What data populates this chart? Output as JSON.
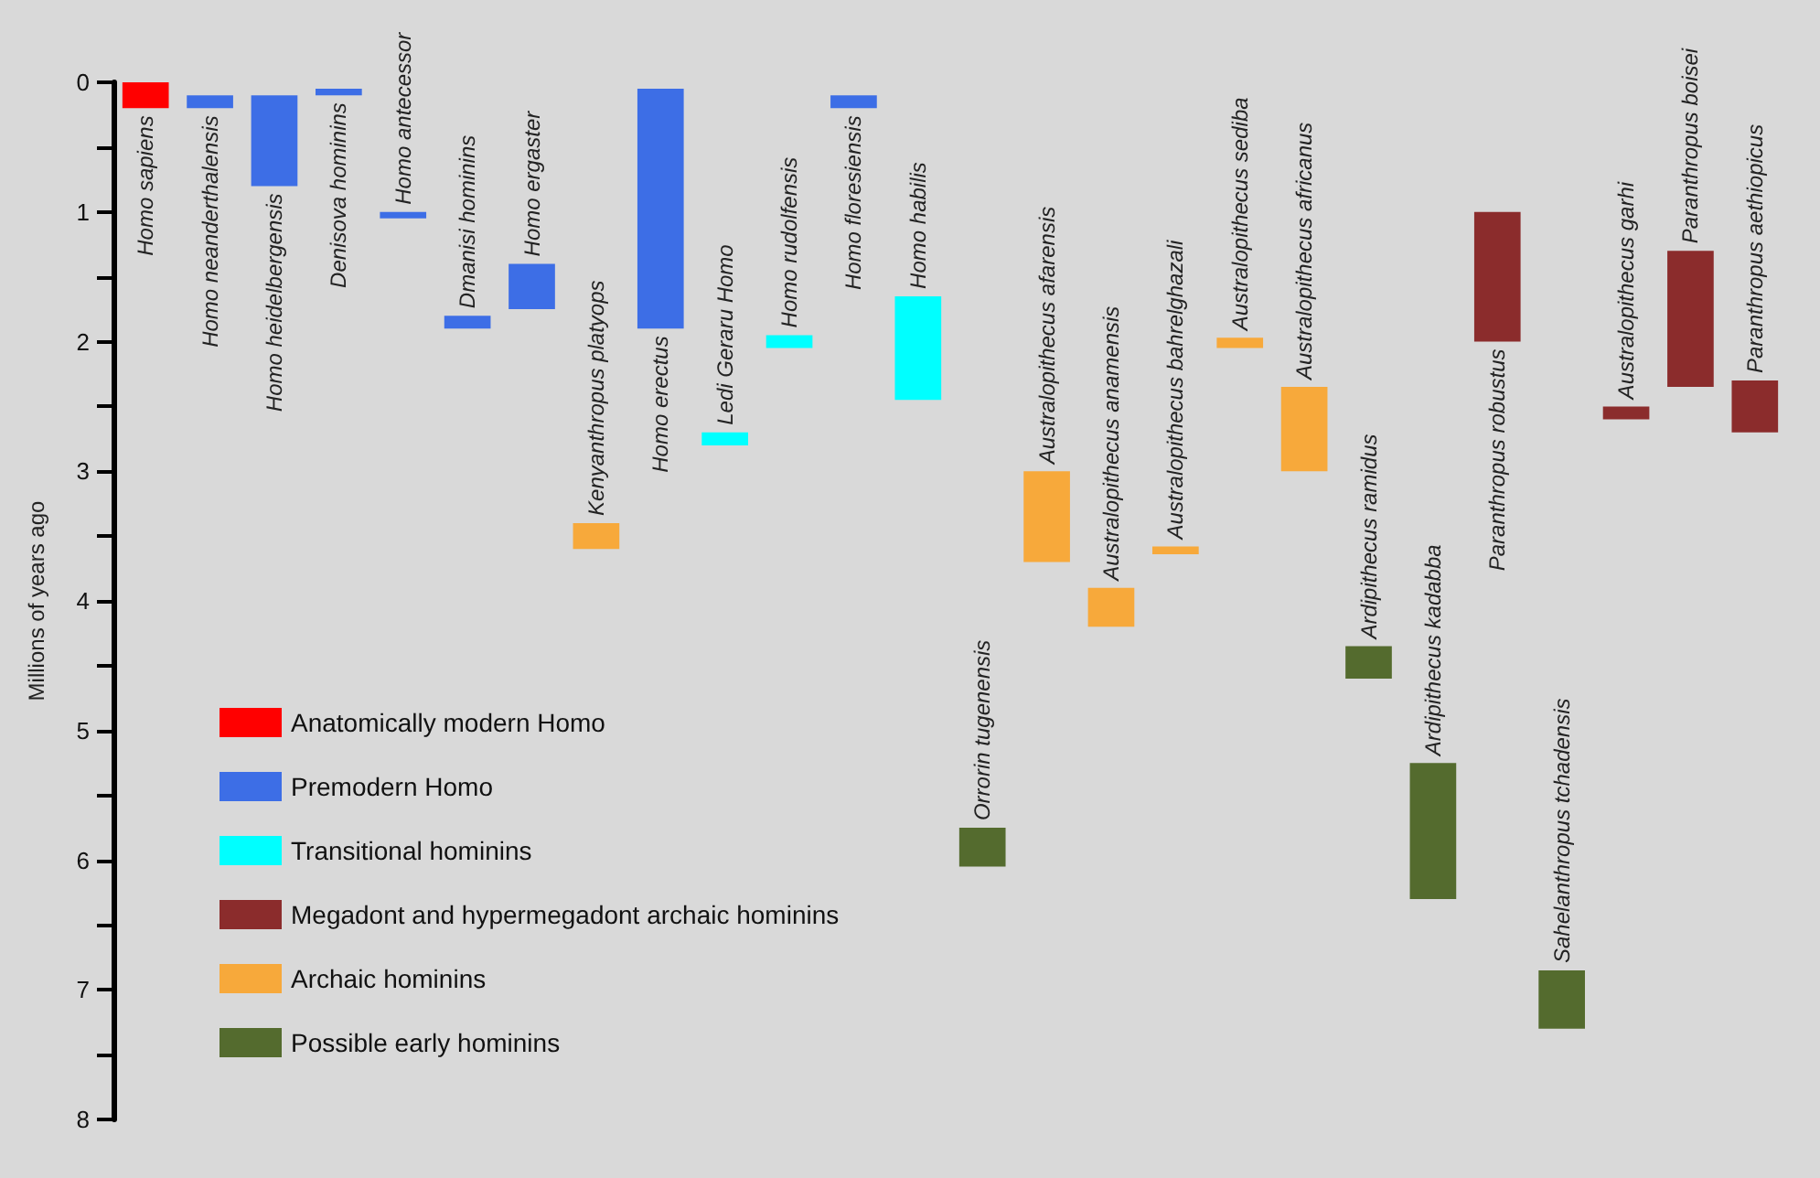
{
  "chart_data": {
    "type": "bar",
    "ylabel": "Millions of years ago",
    "ylim": [
      8,
      0
    ],
    "yticks": [
      0,
      {
        "value": 0.5,
        "label": null
      },
      1,
      {
        "value": 1.5,
        "label": null
      },
      2,
      {
        "value": 2.5,
        "label": null
      },
      3,
      {
        "value": 3.5,
        "label": null
      },
      4,
      {
        "value": 4.5,
        "label": null
      },
      5,
      {
        "value": 5.5,
        "label": null
      },
      6,
      {
        "value": 6.5,
        "label": null
      },
      7,
      {
        "value": 7.5,
        "label": null
      },
      8
    ],
    "categories": [
      "Homo sapiens",
      "Homo neanderthalensis",
      "Homo heidelbergensis",
      "Denisova hominins",
      "Homo antecessor",
      "Dmanisi hominins",
      "Homo ergaster",
      "Kenyanthropus platyops",
      "Homo erectus",
      "Ledi Geraru Homo",
      "Homo rudolfensis",
      "Homo floresiensis",
      "Homo habilis",
      "Orrorin tugenensis",
      "Australopithecus afarensis",
      "Australopithecus anamensis",
      "Australopithecus bahrelghazali",
      "Australopithecus sediba",
      "Australopithecus africanus",
      "Ardipithecus ramidus",
      "Ardipithecus kadabba",
      "Paranthropus robustus",
      "Sahelanthropus tchadensis",
      "Australopithecus garhi",
      "Paranthropus boisei",
      "Paranthropus aethiopicus"
    ],
    "series": [
      {
        "name": "Anatomically modern Homo",
        "color": "#ff0000",
        "values": [
          0.2,
          null,
          null,
          null,
          null,
          null,
          null,
          null,
          null,
          null,
          null,
          null,
          null,
          null,
          null,
          null,
          null,
          null,
          null,
          null,
          null,
          null,
          null,
          null,
          null,
          null
        ],
        "base": [
          0,
          null,
          null,
          null,
          null,
          null,
          null,
          null,
          null,
          null,
          null,
          null,
          null,
          null,
          null,
          null,
          null,
          null,
          null,
          null,
          null,
          null,
          null,
          null,
          null,
          null
        ]
      },
      {
        "name": "Premodern Homo",
        "color": "#3d6ee6",
        "values": [
          null,
          0.1,
          0.7,
          0.05,
          0.05,
          0.1,
          0.35,
          null,
          1.85,
          null,
          null,
          0.1,
          null,
          null,
          null,
          null,
          null,
          null,
          null,
          null,
          null,
          null,
          null,
          null,
          null,
          null
        ],
        "base": [
          null,
          0.1,
          0.1,
          0.05,
          1.0,
          1.8,
          1.4,
          null,
          0.05,
          null,
          null,
          0.1,
          null,
          null,
          null,
          null,
          null,
          null,
          null,
          null,
          null,
          null,
          null,
          null,
          null,
          null
        ]
      },
      {
        "name": "Transitional hominins",
        "color": "#00ffff",
        "values": [
          null,
          null,
          null,
          null,
          null,
          null,
          null,
          null,
          null,
          0.1,
          0.1,
          null,
          0.8,
          null,
          null,
          null,
          null,
          null,
          null,
          null,
          null,
          null,
          null,
          null,
          null,
          null
        ],
        "base": [
          null,
          null,
          null,
          null,
          null,
          null,
          null,
          null,
          null,
          2.7,
          1.95,
          null,
          1.65,
          null,
          null,
          null,
          null,
          null,
          null,
          null,
          null,
          null,
          null,
          null,
          null,
          null
        ]
      },
      {
        "name": "Megadont and hypermegadont archaic hominins",
        "color": "#8b2c2c",
        "values": [
          null,
          null,
          null,
          null,
          null,
          null,
          null,
          null,
          null,
          null,
          null,
          null,
          null,
          null,
          null,
          null,
          null,
          null,
          null,
          null,
          null,
          1.0,
          null,
          0.1,
          1.05,
          0.4
        ],
        "base": [
          null,
          null,
          null,
          null,
          null,
          null,
          null,
          null,
          null,
          null,
          null,
          null,
          null,
          null,
          null,
          null,
          null,
          null,
          null,
          null,
          null,
          1.0,
          null,
          2.5,
          1.3,
          2.3
        ]
      },
      {
        "name": "Archaic hominins",
        "color": "#f7a93b",
        "values": [
          null,
          null,
          null,
          null,
          null,
          null,
          null,
          0.2,
          null,
          null,
          null,
          null,
          null,
          null,
          0.7,
          0.3,
          0.06,
          0.08,
          0.65,
          null,
          null,
          null,
          null,
          null,
          null,
          null
        ],
        "base": [
          null,
          null,
          null,
          null,
          null,
          null,
          null,
          3.4,
          null,
          null,
          null,
          null,
          null,
          null,
          3.0,
          3.9,
          3.58,
          1.97,
          2.35,
          null,
          null,
          null,
          null,
          null,
          null,
          null
        ]
      },
      {
        "name": "Possible early hominins",
        "color": "#546b2e",
        "values": [
          null,
          null,
          null,
          null,
          null,
          null,
          null,
          null,
          null,
          null,
          null,
          null,
          null,
          0.3,
          null,
          null,
          null,
          null,
          null,
          0.25,
          1.05,
          null,
          0.45,
          null,
          null,
          null
        ],
        "base": [
          null,
          null,
          null,
          null,
          null,
          null,
          null,
          null,
          null,
          null,
          null,
          null,
          null,
          5.75,
          null,
          null,
          null,
          null,
          null,
          4.35,
          5.25,
          null,
          6.85,
          null,
          null,
          null
        ]
      }
    ],
    "legend": "bottom left"
  }
}
